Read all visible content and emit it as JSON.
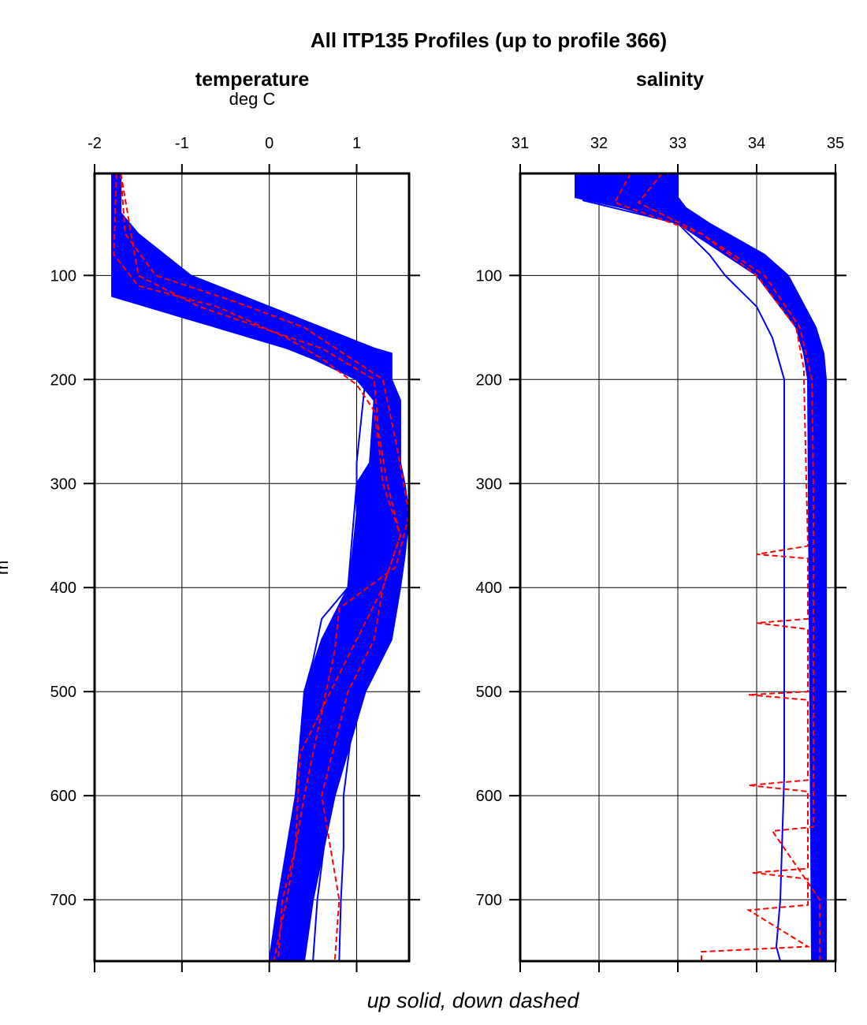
{
  "chart_data": [
    {
      "type": "line",
      "title": "All ITP135 Profiles (up to profile 366)",
      "subplot_title": "temperature",
      "xlabel": "deg C",
      "ylabel": "m",
      "footer": "up solid, down dashed",
      "xlim": [
        -2,
        1.6
      ],
      "ylim": [
        759,
        2
      ],
      "y_inverted": true,
      "grid": true,
      "xticks": [
        "-2",
        "-1",
        "0",
        "1"
      ],
      "xtick_values": [
        -2,
        -1,
        0,
        1
      ],
      "yticks": [
        "100",
        "200",
        "300",
        "400",
        "500",
        "600",
        "700"
      ],
      "ytick_values": [
        100,
        200,
        300,
        400,
        500,
        600,
        700
      ],
      "colors": {
        "up": "#0000ff",
        "down": "#ff0000"
      },
      "up_envelope": {
        "depth": [
          2,
          40,
          60,
          100,
          120,
          140,
          160,
          170,
          175,
          180,
          200,
          220,
          280,
          300,
          330,
          370,
          400,
          450,
          500,
          600,
          700,
          759
        ],
        "min": [
          -1.8,
          -1.8,
          -1.8,
          -1.8,
          -1.8,
          -1.0,
          -0.2,
          0.2,
          0.35,
          0.5,
          1.0,
          1.2,
          1.15,
          1.0,
          1.0,
          0.95,
          0.9,
          0.6,
          0.4,
          0.3,
          0.1,
          0.0
        ],
        "max": [
          -1.7,
          -1.7,
          -1.5,
          -0.9,
          -0.3,
          0.3,
          0.9,
          1.2,
          1.4,
          1.4,
          1.4,
          1.5,
          1.5,
          1.55,
          1.6,
          1.55,
          1.5,
          1.4,
          1.1,
          0.75,
          0.5,
          0.4
        ]
      },
      "series": [
        {
          "style": "up",
          "depth": [
            2,
            30,
            50,
            80,
            100,
            120,
            140,
            160,
            175,
            200,
            220,
            260,
            300,
            330,
            370,
            400,
            450,
            500,
            550,
            600,
            650,
            700,
            759
          ],
          "values": [
            -1.75,
            -1.75,
            -1.7,
            -1.6,
            -1.4,
            -0.9,
            -0.2,
            0.6,
            1.3,
            1.35,
            1.3,
            1.4,
            1.5,
            1.55,
            1.4,
            1.3,
            1.2,
            0.9,
            0.75,
            0.55,
            0.4,
            0.3,
            0.2
          ]
        },
        {
          "style": "up",
          "depth": [
            2,
            100,
            118,
            140,
            170,
            200,
            280,
            300,
            400,
            430,
            470,
            500,
            600,
            700,
            759
          ],
          "values": [
            -1.8,
            -1.8,
            -1.8,
            -1.0,
            0.3,
            1.1,
            1.0,
            1.0,
            0.9,
            0.6,
            0.5,
            0.4,
            0.35,
            0.15,
            0.05
          ]
        },
        {
          "style": "up",
          "depth": [
            2,
            100,
            120,
            150,
            180,
            220,
            300,
            400,
            500,
            600,
            650,
            700,
            759
          ],
          "values": [
            -1.75,
            -1.7,
            -1.2,
            -0.2,
            1.0,
            1.35,
            1.45,
            1.3,
            1.0,
            0.85,
            0.85,
            0.82,
            0.8
          ]
        },
        {
          "style": "up",
          "depth": [
            2,
            100,
            120,
            150,
            180,
            220,
            300,
            400,
            500,
            600,
            700,
            759
          ],
          "values": [
            -1.75,
            -1.7,
            -1.2,
            -0.2,
            1.0,
            1.35,
            1.45,
            1.3,
            0.95,
            0.7,
            0.55,
            0.5
          ]
        },
        {
          "style": "down",
          "depth": [
            2,
            80,
            110,
            130,
            160,
            180,
            205,
            230,
            260,
            300,
            350,
            400,
            500,
            560,
            650,
            700,
            759
          ],
          "values": [
            -1.75,
            -1.78,
            -1.5,
            -0.6,
            0.2,
            0.6,
            1.0,
            1.2,
            1.25,
            1.3,
            1.5,
            1.3,
            0.7,
            0.35,
            0.3,
            0.15,
            0.1
          ]
        },
        {
          "style": "down",
          "depth": [
            2,
            100,
            130,
            150,
            170,
            200,
            250,
            300,
            350,
            400,
            450,
            500,
            600,
            700,
            759
          ],
          "values": [
            -1.7,
            -1.5,
            -0.8,
            -0.1,
            0.6,
            1.2,
            1.25,
            1.35,
            1.5,
            1.3,
            1.2,
            0.9,
            0.6,
            0.8,
            0.75
          ]
        },
        {
          "style": "down",
          "depth": [
            2,
            60,
            100,
            125,
            150,
            200,
            260,
            330,
            380,
            420,
            460,
            520,
            600,
            700,
            759
          ],
          "values": [
            -1.7,
            -1.65,
            -1.3,
            -0.4,
            0.4,
            1.3,
            1.45,
            1.6,
            1.45,
            0.8,
            0.75,
            0.6,
            0.4,
            0.2,
            0.05
          ]
        }
      ]
    },
    {
      "type": "line",
      "subplot_title": "salinity",
      "xlim": [
        31,
        35
      ],
      "ylim": [
        759,
        2
      ],
      "y_inverted": true,
      "grid": true,
      "xticks": [
        "31",
        "32",
        "33",
        "34",
        "35"
      ],
      "xtick_values": [
        31,
        32,
        33,
        34,
        35
      ],
      "yticks": [
        "100",
        "200",
        "300",
        "400",
        "500",
        "600",
        "700"
      ],
      "ytick_values": [
        100,
        200,
        300,
        400,
        500,
        600,
        700
      ],
      "up_envelope": {
        "depth": [
          2,
          25,
          35,
          50,
          80,
          100,
          150,
          175,
          200,
          759
        ],
        "min": [
          31.7,
          31.7,
          32.3,
          33.0,
          33.6,
          34.0,
          34.5,
          34.6,
          34.65,
          34.7
        ],
        "max": [
          33.0,
          33.0,
          33.1,
          33.4,
          34.1,
          34.4,
          34.75,
          34.85,
          34.88,
          34.88
        ]
      },
      "series": [
        {
          "style": "up",
          "depth": [
            2,
            25,
            35,
            50,
            80,
            100,
            150,
            175,
            300,
            500,
            759
          ],
          "values": [
            32.0,
            32.0,
            32.5,
            33.2,
            33.9,
            34.3,
            34.7,
            34.8,
            34.83,
            34.84,
            34.85
          ]
        },
        {
          "style": "up",
          "depth": [
            2,
            28,
            50,
            80,
            100,
            130,
            160,
            200,
            300,
            500,
            580,
            700,
            745,
            759
          ],
          "values": [
            31.7,
            31.8,
            33.0,
            33.4,
            33.6,
            34.0,
            34.2,
            34.35,
            34.35,
            34.35,
            34.35,
            34.3,
            34.25,
            34.3
          ]
        },
        {
          "style": "down",
          "depth": [
            2,
            30,
            60,
            100,
            150,
            190,
            200,
            360,
            368,
            372,
            380,
            430,
            434,
            440,
            500,
            503,
            508,
            585,
            590,
            596,
            670,
            674,
            680,
            705,
            710,
            745,
            750,
            759
          ],
          "values": [
            32.4,
            32.2,
            33.3,
            34.0,
            34.5,
            34.6,
            34.6,
            34.65,
            34.0,
            34.65,
            34.65,
            34.65,
            34.0,
            34.65,
            34.65,
            33.9,
            34.65,
            34.65,
            33.9,
            34.65,
            34.65,
            33.95,
            34.65,
            34.65,
            33.9,
            34.65,
            33.3,
            33.3
          ]
        },
        {
          "style": "down",
          "depth": [
            2,
            30,
            60,
            100,
            150,
            200,
            300,
            630,
            634,
            700,
            759
          ],
          "values": [
            32.8,
            32.5,
            33.3,
            34.1,
            34.55,
            34.7,
            34.72,
            34.72,
            34.2,
            34.8,
            34.8
          ]
        }
      ]
    }
  ]
}
